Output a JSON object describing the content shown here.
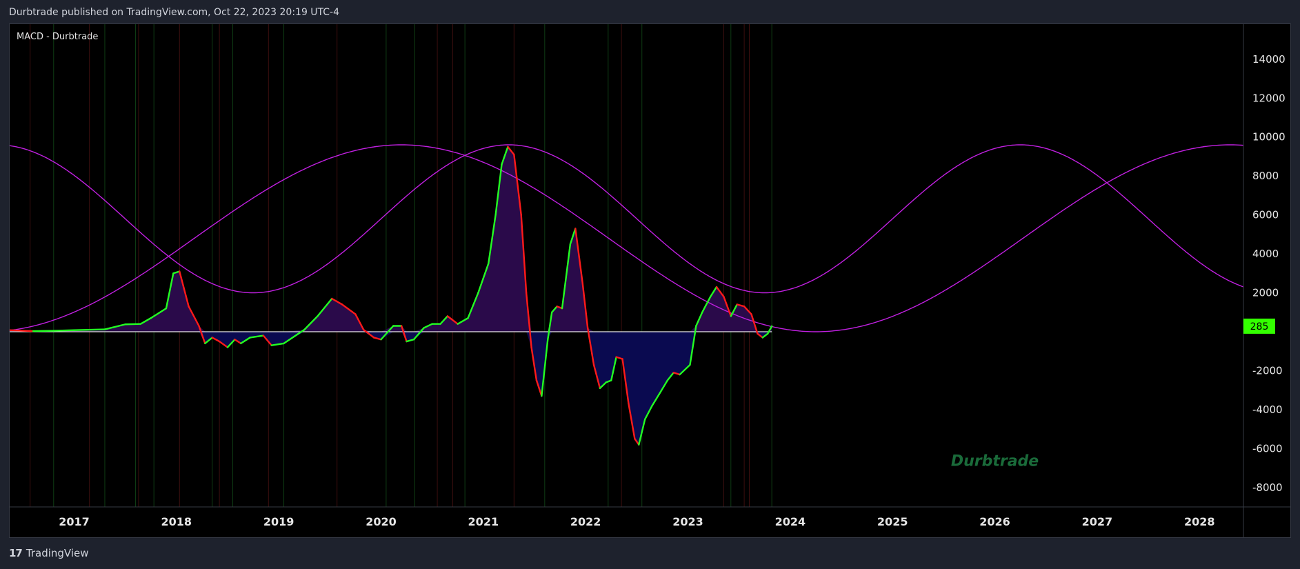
{
  "header": {
    "published": "Durbtrade published on TradingView.com, Oct 22, 2023 20:19 UTC-4"
  },
  "indicator": {
    "label": "MACD - Durbtrade"
  },
  "footer": {
    "brand": "TradingView",
    "icon": "tradingview-logo-icon"
  },
  "colors": {
    "background": "#000000",
    "frame": "#1e222d",
    "rising": "#22ff22",
    "falling": "#ff1a1a",
    "fill_positive": "#2a0a4a",
    "fill_negative": "#0a0a50",
    "cycle": "#c020e0",
    "zero_line": "#e8e8e8",
    "grid_green": "#0f3d14",
    "grid_red": "#3d0f0f",
    "axis_text": "#e6e6e6",
    "badge": "#33ff00",
    "watermark": "#1a6b3a"
  },
  "chart_data": {
    "type": "line",
    "title": "MACD - Durbtrade",
    "xlim": [
      2016.37,
      2028.43
    ],
    "ylim": [
      -9000,
      15800
    ],
    "x_ticks": [
      2017,
      2018,
      2019,
      2020,
      2021,
      2022,
      2023,
      2024,
      2025,
      2026,
      2027,
      2028
    ],
    "x_tick_labels": [
      "2017",
      "2018",
      "2019",
      "2020",
      "2021",
      "2022",
      "2023",
      "2024",
      "2025",
      "2026",
      "2027",
      "2028"
    ],
    "y_ticks": [
      -8000,
      -6000,
      -4000,
      -2000,
      2000,
      4000,
      6000,
      8000,
      10000,
      12000,
      14000
    ],
    "y_tick_labels": [
      "-8000",
      "-6000",
      "-4000",
      "-2000",
      "2000",
      "4000",
      "6000",
      "8000",
      "10000",
      "12000",
      "14000"
    ],
    "grid": false,
    "last_value": 285,
    "last_value_label": "285",
    "watermark": "Durbtrade",
    "zero_line": 0,
    "vertical_markers": {
      "green": [
        2016.8,
        2017.3,
        2017.6,
        2017.78,
        2018.35,
        2018.55,
        2019.05,
        2020.05,
        2020.33,
        2020.82,
        2021.6,
        2022.22,
        2022.55,
        2023.42,
        2023.82
      ],
      "red": [
        2016.57,
        2017.15,
        2017.63,
        2018.03,
        2018.42,
        2018.9,
        2019.57,
        2020.55,
        2020.7,
        2021.3,
        2022.35,
        2023.35,
        2023.55,
        2023.6
      ]
    },
    "series": [
      {
        "name": "",
        "values": [
          [
            2016.37,
            80
          ],
          [
            2016.6,
            30
          ],
          [
            2016.8,
            50
          ],
          [
            2017.0,
            80
          ],
          [
            2017.3,
            120
          ],
          [
            2017.5,
            380
          ],
          [
            2017.65,
            400
          ],
          [
            2017.75,
            700
          ],
          [
            2017.9,
            1200
          ],
          [
            2017.97,
            3000
          ],
          [
            2018.03,
            3100
          ],
          [
            2018.12,
            1300
          ],
          [
            2018.22,
            300
          ],
          [
            2018.28,
            -600
          ],
          [
            2018.35,
            -300
          ],
          [
            2018.42,
            -500
          ],
          [
            2018.5,
            -800
          ],
          [
            2018.57,
            -400
          ],
          [
            2018.63,
            -600
          ],
          [
            2018.72,
            -300
          ],
          [
            2018.85,
            -200
          ],
          [
            2018.93,
            -700
          ],
          [
            2019.05,
            -600
          ],
          [
            2019.25,
            100
          ],
          [
            2019.38,
            800
          ],
          [
            2019.52,
            1700
          ],
          [
            2019.62,
            1400
          ],
          [
            2019.75,
            900
          ],
          [
            2019.83,
            100
          ],
          [
            2019.93,
            -300
          ],
          [
            2020.0,
            -400
          ],
          [
            2020.12,
            300
          ],
          [
            2020.2,
            300
          ],
          [
            2020.25,
            -500
          ],
          [
            2020.32,
            -400
          ],
          [
            2020.42,
            200
          ],
          [
            2020.5,
            400
          ],
          [
            2020.58,
            400
          ],
          [
            2020.65,
            800
          ],
          [
            2020.75,
            400
          ],
          [
            2020.85,
            700
          ],
          [
            2020.95,
            2000
          ],
          [
            2021.05,
            3500
          ],
          [
            2021.12,
            6000
          ],
          [
            2021.18,
            8600
          ],
          [
            2021.24,
            9500
          ],
          [
            2021.3,
            9100
          ],
          [
            2021.37,
            6000
          ],
          [
            2021.42,
            2000
          ],
          [
            2021.47,
            -800
          ],
          [
            2021.52,
            -2500
          ],
          [
            2021.57,
            -3300
          ],
          [
            2021.63,
            -400
          ],
          [
            2021.67,
            1000
          ],
          [
            2021.72,
            1300
          ],
          [
            2021.77,
            1200
          ],
          [
            2021.85,
            4500
          ],
          [
            2021.9,
            5300
          ],
          [
            2021.97,
            2500
          ],
          [
            2022.02,
            200
          ],
          [
            2022.08,
            -1700
          ],
          [
            2022.14,
            -2900
          ],
          [
            2022.2,
            -2600
          ],
          [
            2022.25,
            -2500
          ],
          [
            2022.3,
            -1300
          ],
          [
            2022.36,
            -1400
          ],
          [
            2022.42,
            -3700
          ],
          [
            2022.48,
            -5500
          ],
          [
            2022.52,
            -5800
          ],
          [
            2022.58,
            -4500
          ],
          [
            2022.65,
            -3800
          ],
          [
            2022.72,
            -3200
          ],
          [
            2022.8,
            -2500
          ],
          [
            2022.86,
            -2100
          ],
          [
            2022.92,
            -2200
          ],
          [
            2023.02,
            -1700
          ],
          [
            2023.08,
            300
          ],
          [
            2023.14,
            1000
          ],
          [
            2023.22,
            1800
          ],
          [
            2023.28,
            2300
          ],
          [
            2023.35,
            1800
          ],
          [
            2023.42,
            800
          ],
          [
            2023.48,
            1400
          ],
          [
            2023.55,
            1300
          ],
          [
            2023.62,
            900
          ],
          [
            2023.68,
            -100
          ],
          [
            2023.73,
            -300
          ],
          [
            2023.78,
            -100
          ],
          [
            2023.82,
            285
          ]
        ]
      }
    ]
  }
}
